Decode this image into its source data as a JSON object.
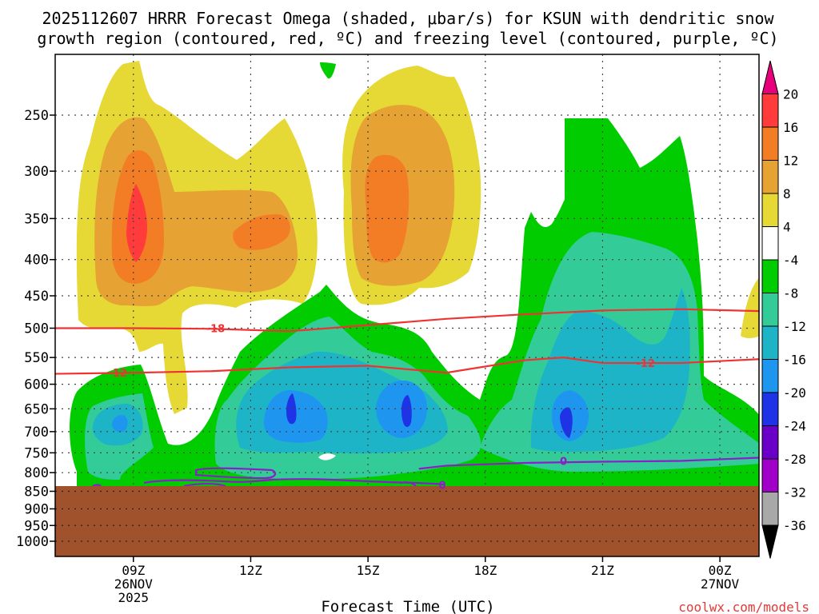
{
  "chart_data": {
    "type": "heatmap",
    "title_line1": "2025112607 HRRR Forecast Omega (shaded, μbar/s) for KSUN with dendritic snow",
    "title_line2": "growth region (contoured, red, ºC) and freezing level (contoured, purple, ºC)",
    "xlabel": "Forecast Time (UTC)",
    "ylabel": "",
    "y_scale": "log-pressure",
    "y_ticks": [
      250,
      300,
      350,
      400,
      450,
      500,
      550,
      600,
      650,
      700,
      750,
      800,
      850,
      900,
      950,
      1000
    ],
    "x_ticks": [
      {
        "hour": 9,
        "line1": "09Z",
        "line2": "26NOV",
        "line3": "2025"
      },
      {
        "hour": 12,
        "line1": "12Z",
        "line2": "",
        "line3": ""
      },
      {
        "hour": 15,
        "line1": "15Z",
        "line2": "",
        "line3": ""
      },
      {
        "hour": 18,
        "line1": "18Z",
        "line2": "",
        "line3": ""
      },
      {
        "hour": 21,
        "line1": "21Z",
        "line2": "",
        "line3": ""
      },
      {
        "hour": 24,
        "line1": "00Z",
        "line2": "27NOV",
        "line3": ""
      }
    ],
    "xlim_hours": [
      7,
      25
    ],
    "grid": true,
    "terrain_pressure": 840,
    "colorbar_labels": [
      "20",
      "16",
      "12",
      "8",
      "4",
      "-4",
      "-8",
      "-12",
      "-16",
      "-20",
      "-24",
      "-28",
      "-32",
      "-36"
    ],
    "colorbar_colors": [
      "#e8007a",
      "#ff3b3b",
      "#f27d25",
      "#e6a233",
      "#e6d835",
      "#ffffff",
      "#00cc00",
      "#33cc99",
      "#1eb4c8",
      "#1e96f0",
      "#1e32e6",
      "#6a00c8",
      "#a000c8",
      "#a8a8a8",
      "#000000"
    ],
    "omega_features": [
      {
        "type": "rising_max",
        "hour": 9.0,
        "pressure": 360,
        "value": 16
      },
      {
        "type": "rising_max",
        "hour": 11.9,
        "pressure": 370,
        "value": 12
      },
      {
        "type": "rising_max",
        "hour": 15.0,
        "pressure": 330,
        "value": 12
      },
      {
        "type": "sinking_max",
        "hour": 13.0,
        "pressure": 660,
        "value": -20
      },
      {
        "type": "sinking_max",
        "hour": 16.0,
        "pressure": 660,
        "value": -20
      },
      {
        "type": "sinking_max",
        "hour": 19.9,
        "pressure": 680,
        "value": -20
      },
      {
        "type": "sinking_max",
        "hour": 9.0,
        "pressure": 690,
        "value": -12
      }
    ],
    "series": [
      {
        "color": "#ee3333",
        "label": "-18",
        "points": [
          [
            7,
            500
          ],
          [
            9,
            500
          ],
          [
            11,
            501
          ],
          [
            13,
            505
          ],
          [
            15,
            495
          ],
          [
            17,
            485
          ],
          [
            19,
            478
          ],
          [
            21,
            472
          ],
          [
            23,
            470
          ],
          [
            25,
            473
          ]
        ]
      },
      {
        "color": "#ee3333",
        "label": "-12",
        "points": [
          [
            7,
            580
          ],
          [
            9,
            578
          ],
          [
            11,
            575
          ],
          [
            13,
            568
          ],
          [
            15,
            565
          ],
          [
            17,
            578
          ],
          [
            19,
            555
          ],
          [
            20,
            550
          ],
          [
            21,
            560
          ],
          [
            23,
            560
          ],
          [
            25,
            553
          ]
        ]
      },
      {
        "color": "#8a1ec8",
        "label": "0",
        "points": [
          [
            16.3,
            790
          ],
          [
            17,
            782
          ],
          [
            19,
            775
          ],
          [
            21,
            772
          ],
          [
            23,
            770
          ],
          [
            25,
            762
          ]
        ]
      }
    ],
    "contour_labels": [
      {
        "text": "-18",
        "hour": 11.1,
        "pressure": 500,
        "color": "#ee3333"
      },
      {
        "text": "-12",
        "hour": 8.6,
        "pressure": 578,
        "color": "#ee3333"
      },
      {
        "text": "-12",
        "hour": 22.1,
        "pressure": 560,
        "color": "#ee3333"
      },
      {
        "text": "0",
        "hour": 20.0,
        "pressure": 770,
        "color": "#8a1ec8"
      },
      {
        "text": "0",
        "hour": 16.9,
        "pressure": 833,
        "color": "#8a1ec8"
      }
    ]
  },
  "footer": {
    "credit": "coolwx.com/models"
  }
}
